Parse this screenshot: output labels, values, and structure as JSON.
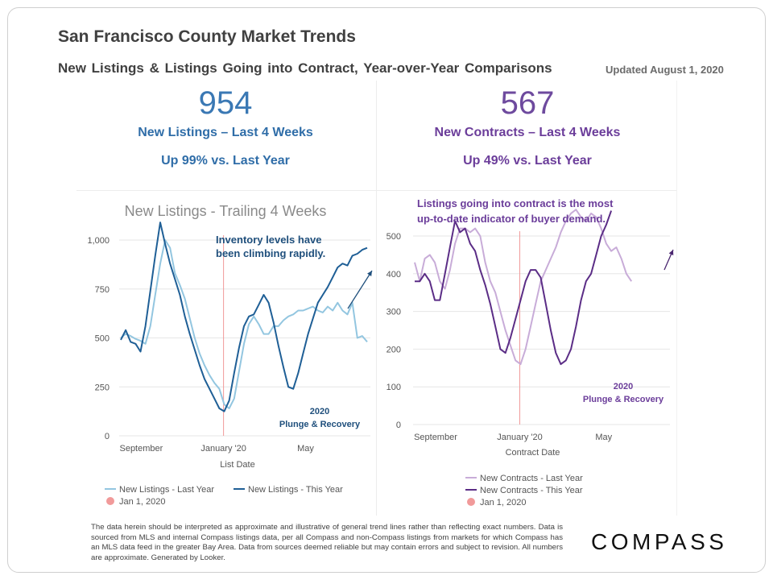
{
  "header": {
    "title": "San Francisco County Market Trends",
    "subtitle": "New Listings & Listings Going into Contract, Year-over-Year Comparisons",
    "updated": "Updated August 1, 2020"
  },
  "kpis": {
    "listings": {
      "value": "954",
      "label": "New Listings – Last 4 Weeks",
      "change": "Up 99% vs. Last Year"
    },
    "contracts": {
      "value": "567",
      "label": "New Contracts – Last 4 Weeks",
      "change": "Up 49% vs. Last Year"
    }
  },
  "chart_data": [
    {
      "type": "line",
      "title": "New Listings - Trailing 4 Weeks",
      "xlabel": "List Date",
      "ylabel": "",
      "ylim": [
        0,
        1100
      ],
      "yticks": [
        0,
        250,
        500,
        750,
        1000
      ],
      "ytick_labels": [
        "0",
        "250",
        "500",
        "750",
        "1,000"
      ],
      "xticks": [
        {
          "label": "September",
          "t": 0.083
        },
        {
          "label": "January '20",
          "t": 0.417
        },
        {
          "label": "May",
          "t": 0.75
        }
      ],
      "xlim": [
        0,
        1
      ],
      "grid": true,
      "ref_line": {
        "name": "Jan 1, 2020",
        "t": 0.417,
        "color": "#f19a9a"
      },
      "annotations": [
        {
          "text": "Inventory levels have been climbing rapidly.",
          "color": "#1f4f7c"
        },
        {
          "text": "2020 Plunge & Recovery",
          "color": "#1f4f7c"
        }
      ],
      "series": [
        {
          "name": "New Listings - Last Year",
          "color": "#93c6e0",
          "points": [
            [
              0,
              500
            ],
            [
              0.02,
              520
            ],
            [
              0.04,
              510
            ],
            [
              0.06,
              495
            ],
            [
              0.08,
              485
            ],
            [
              0.1,
              470
            ],
            [
              0.12,
              560
            ],
            [
              0.14,
              720
            ],
            [
              0.16,
              880
            ],
            [
              0.18,
              1000
            ],
            [
              0.2,
              960
            ],
            [
              0.22,
              830
            ],
            [
              0.24,
              770
            ],
            [
              0.26,
              700
            ],
            [
              0.28,
              600
            ],
            [
              0.3,
              500
            ],
            [
              0.32,
              420
            ],
            [
              0.34,
              360
            ],
            [
              0.36,
              310
            ],
            [
              0.38,
              270
            ],
            [
              0.4,
              240
            ],
            [
              0.42,
              160
            ],
            [
              0.44,
              140
            ],
            [
              0.46,
              190
            ],
            [
              0.48,
              330
            ],
            [
              0.5,
              470
            ],
            [
              0.52,
              570
            ],
            [
              0.54,
              610
            ],
            [
              0.56,
              570
            ],
            [
              0.58,
              520
            ],
            [
              0.6,
              520
            ],
            [
              0.62,
              560
            ],
            [
              0.64,
              560
            ],
            [
              0.66,
              590
            ],
            [
              0.68,
              610
            ],
            [
              0.7,
              620
            ],
            [
              0.72,
              640
            ],
            [
              0.74,
              640
            ],
            [
              0.76,
              650
            ],
            [
              0.78,
              660
            ],
            [
              0.8,
              640
            ],
            [
              0.82,
              630
            ],
            [
              0.84,
              660
            ],
            [
              0.86,
              640
            ],
            [
              0.88,
              680
            ],
            [
              0.9,
              640
            ],
            [
              0.92,
              620
            ],
            [
              0.94,
              680
            ],
            [
              0.96,
              500
            ],
            [
              0.98,
              510
            ],
            [
              1,
              480
            ]
          ]
        },
        {
          "name": "New Listings - This Year",
          "color": "#1f5f96",
          "points": [
            [
              0,
              490
            ],
            [
              0.02,
              540
            ],
            [
              0.04,
              480
            ],
            [
              0.06,
              470
            ],
            [
              0.08,
              430
            ],
            [
              0.1,
              560
            ],
            [
              0.12,
              740
            ],
            [
              0.14,
              920
            ],
            [
              0.16,
              1090
            ],
            [
              0.18,
              980
            ],
            [
              0.2,
              880
            ],
            [
              0.22,
              800
            ],
            [
              0.24,
              720
            ],
            [
              0.26,
              610
            ],
            [
              0.28,
              520
            ],
            [
              0.3,
              440
            ],
            [
              0.32,
              360
            ],
            [
              0.34,
              290
            ],
            [
              0.36,
              240
            ],
            [
              0.38,
              190
            ],
            [
              0.4,
              140
            ],
            [
              0.42,
              125
            ],
            [
              0.44,
              180
            ],
            [
              0.46,
              320
            ],
            [
              0.48,
              450
            ],
            [
              0.5,
              560
            ],
            [
              0.52,
              610
            ],
            [
              0.54,
              620
            ],
            [
              0.56,
              670
            ],
            [
              0.58,
              720
            ],
            [
              0.6,
              680
            ],
            [
              0.62,
              580
            ],
            [
              0.64,
              460
            ],
            [
              0.66,
              350
            ],
            [
              0.68,
              250
            ],
            [
              0.7,
              240
            ],
            [
              0.72,
              320
            ],
            [
              0.74,
              420
            ],
            [
              0.76,
              520
            ],
            [
              0.78,
              600
            ],
            [
              0.8,
              680
            ],
            [
              0.82,
              720
            ],
            [
              0.84,
              760
            ],
            [
              0.86,
              810
            ],
            [
              0.88,
              860
            ],
            [
              0.9,
              880
            ],
            [
              0.92,
              870
            ],
            [
              0.94,
              920
            ],
            [
              0.96,
              930
            ],
            [
              0.98,
              950
            ],
            [
              1,
              960
            ]
          ]
        }
      ],
      "legend": [
        "New Listings - Last Year",
        "New Listings - This Year",
        "Jan 1, 2020"
      ]
    },
    {
      "type": "line",
      "title": "",
      "xlabel": "Contract Date",
      "ylabel": "",
      "ylim": [
        0,
        570
      ],
      "yticks": [
        0,
        100,
        200,
        300,
        400,
        500
      ],
      "ytick_labels": [
        "0",
        "100",
        "200",
        "300",
        "400",
        "500"
      ],
      "xticks": [
        {
          "label": "September",
          "t": 0.083
        },
        {
          "label": "January '20",
          "t": 0.417
        },
        {
          "label": "May",
          "t": 0.75
        }
      ],
      "xlim": [
        0,
        1
      ],
      "grid": true,
      "ref_line": {
        "name": "Jan 1, 2020",
        "t": 0.417,
        "color": "#f19a9a"
      },
      "annotations": [
        {
          "text": "Listings going into contract is the most up-to-date indicator of buyer demand.",
          "color": "#6b3d9a"
        },
        {
          "text": "2020 Plunge & Recovery",
          "color": "#6b3d9a"
        }
      ],
      "series": [
        {
          "name": "New Contracts - Last Year",
          "color": "#c8acd8",
          "points": [
            [
              0,
              430
            ],
            [
              0.02,
              380
            ],
            [
              0.04,
              440
            ],
            [
              0.06,
              450
            ],
            [
              0.08,
              430
            ],
            [
              0.1,
              380
            ],
            [
              0.12,
              360
            ],
            [
              0.14,
              410
            ],
            [
              0.16,
              480
            ],
            [
              0.18,
              520
            ],
            [
              0.2,
              520
            ],
            [
              0.22,
              510
            ],
            [
              0.24,
              520
            ],
            [
              0.26,
              500
            ],
            [
              0.28,
              430
            ],
            [
              0.3,
              380
            ],
            [
              0.32,
              350
            ],
            [
              0.34,
              300
            ],
            [
              0.36,
              250
            ],
            [
              0.38,
              210
            ],
            [
              0.4,
              170
            ],
            [
              0.42,
              160
            ],
            [
              0.44,
              200
            ],
            [
              0.46,
              260
            ],
            [
              0.48,
              320
            ],
            [
              0.5,
              380
            ],
            [
              0.52,
              410
            ],
            [
              0.54,
              440
            ],
            [
              0.56,
              470
            ],
            [
              0.58,
              510
            ],
            [
              0.6,
              540
            ],
            [
              0.62,
              560
            ],
            [
              0.64,
              570
            ],
            [
              0.66,
              550
            ],
            [
              0.68,
              540
            ],
            [
              0.7,
              560
            ],
            [
              0.72,
              550
            ],
            [
              0.74,
              520
            ],
            [
              0.76,
              480
            ],
            [
              0.78,
              460
            ],
            [
              0.8,
              470
            ],
            [
              0.82,
              440
            ],
            [
              0.84,
              400
            ],
            [
              0.86,
              380
            ]
          ]
        },
        {
          "name": "New Contracts - This Year",
          "color": "#5b2d86",
          "points": [
            [
              0,
              380
            ],
            [
              0.02,
              380
            ],
            [
              0.04,
              400
            ],
            [
              0.06,
              380
            ],
            [
              0.08,
              330
            ],
            [
              0.1,
              330
            ],
            [
              0.12,
              400
            ],
            [
              0.14,
              470
            ],
            [
              0.16,
              540
            ],
            [
              0.18,
              510
            ],
            [
              0.2,
              520
            ],
            [
              0.22,
              480
            ],
            [
              0.24,
              460
            ],
            [
              0.26,
              410
            ],
            [
              0.28,
              370
            ],
            [
              0.3,
              320
            ],
            [
              0.32,
              260
            ],
            [
              0.34,
              200
            ],
            [
              0.36,
              190
            ],
            [
              0.38,
              230
            ],
            [
              0.4,
              280
            ],
            [
              0.42,
              330
            ],
            [
              0.44,
              380
            ],
            [
              0.46,
              410
            ],
            [
              0.48,
              410
            ],
            [
              0.5,
              390
            ],
            [
              0.52,
              320
            ],
            [
              0.54,
              250
            ],
            [
              0.56,
              190
            ],
            [
              0.58,
              160
            ],
            [
              0.6,
              170
            ],
            [
              0.62,
              200
            ],
            [
              0.64,
              260
            ],
            [
              0.66,
              330
            ],
            [
              0.68,
              380
            ],
            [
              0.7,
              400
            ],
            [
              0.72,
              450
            ],
            [
              0.74,
              500
            ],
            [
              0.76,
              530
            ],
            [
              0.78,
              567
            ]
          ]
        }
      ],
      "legend": [
        "New Contracts - Last Year",
        "New Contracts - This Year",
        "Jan 1, 2020"
      ]
    }
  ],
  "disclaimer": "The data herein should be interpreted as approximate and illustrative of general trend lines rather than reflecting exact numbers. Data is sourced from MLS and internal Compass listings data, per all Compass and non-Compass listings from markets for which Compass has an MLS data feed in the greater Bay Area. Data from sources deemed reliable but may contain errors and subject to revision. All numbers are approximate. Generated by Looker.",
  "logo": "COMPASS"
}
